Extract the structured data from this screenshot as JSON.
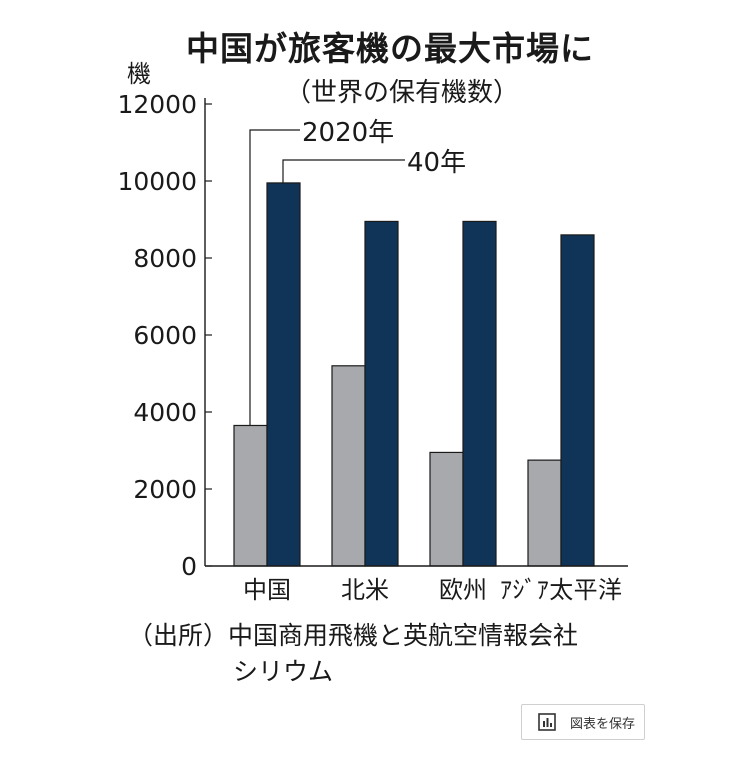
{
  "chart_data": {
    "type": "bar",
    "title": "中国が旅客機の最大市場に",
    "subtitle": "（世界の保有機数）",
    "ylabel": "機",
    "categories": [
      "中国",
      "北米",
      "欧州",
      "ｱｼﾞｱ太平洋"
    ],
    "series": [
      {
        "name": "2020年",
        "color": "#a7a9ac",
        "values": [
          3650,
          5200,
          2950,
          2750
        ]
      },
      {
        "name": "40年",
        "color": "#0f3457",
        "values": [
          9950,
          8950,
          8950,
          8600
        ]
      }
    ],
    "ylim": [
      0,
      12000
    ],
    "yticks": [
      "0",
      "2000",
      "4000",
      "6000",
      "8000",
      "10000",
      "12000"
    ],
    "source_line1": "（出所）中国商用飛機と英航空情報会社",
    "source_line2": "シリウム"
  },
  "save_button": {
    "label": "図表を保存",
    "icon": "bar-chart-icon"
  }
}
